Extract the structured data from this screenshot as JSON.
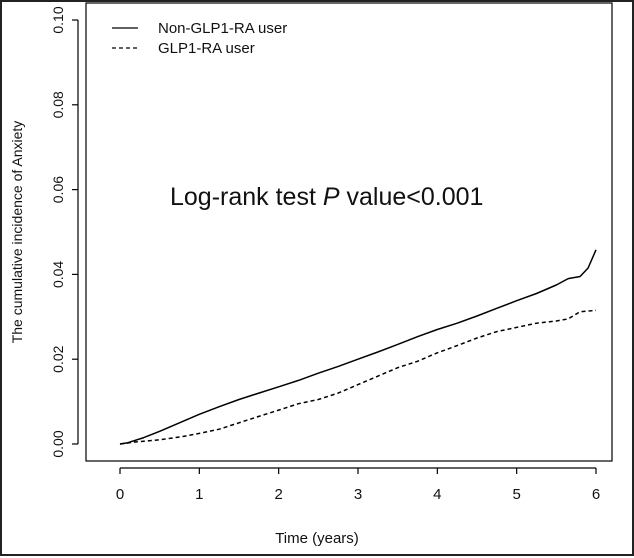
{
  "chart_data": {
    "type": "line",
    "title": "",
    "xlabel": "Time (years)",
    "ylabel": "The cumulative incidence of Anxiety",
    "xlim": [
      0,
      6
    ],
    "ylim": [
      0,
      0.1
    ],
    "x_ticks": [
      "0",
      "1",
      "2",
      "3",
      "4",
      "5",
      "6"
    ],
    "y_ticks": [
      "0.00",
      "0.02",
      "0.04",
      "0.06",
      "0.08",
      "0.10"
    ],
    "grid": false,
    "legend_position": "top-left",
    "annotation": {
      "prefix": "Log-rank test ",
      "italic": "P",
      "suffix": " value<0.001"
    },
    "series": [
      {
        "name": "Non-GLP1-RA user",
        "line_style": "solid",
        "color": "#000000",
        "x": [
          0,
          0.1,
          0.3,
          0.5,
          0.75,
          1.0,
          1.25,
          1.5,
          1.75,
          2.0,
          2.25,
          2.5,
          2.75,
          3.0,
          3.25,
          3.5,
          3.75,
          4.0,
          4.25,
          4.5,
          4.75,
          5.0,
          5.25,
          5.5,
          5.65,
          5.8,
          5.9,
          6.0
        ],
        "y": [
          0,
          0.0003,
          0.0015,
          0.003,
          0.005,
          0.007,
          0.0088,
          0.0105,
          0.012,
          0.0135,
          0.015,
          0.0167,
          0.0183,
          0.02,
          0.0217,
          0.0235,
          0.0253,
          0.027,
          0.0285,
          0.0302,
          0.032,
          0.0338,
          0.0355,
          0.0375,
          0.039,
          0.0395,
          0.0415,
          0.0458
        ]
      },
      {
        "name": "GLP1-RA user",
        "line_style": "dashed",
        "color": "#000000",
        "x": [
          0,
          0.2,
          0.5,
          0.8,
          1.0,
          1.25,
          1.5,
          1.75,
          2.0,
          2.25,
          2.5,
          2.75,
          3.0,
          3.25,
          3.5,
          3.75,
          4.0,
          4.25,
          4.5,
          4.75,
          5.0,
          5.25,
          5.5,
          5.65,
          5.8,
          6.0
        ],
        "y": [
          0,
          0.0005,
          0.001,
          0.0018,
          0.0025,
          0.0035,
          0.005,
          0.0065,
          0.008,
          0.0095,
          0.0105,
          0.012,
          0.014,
          0.016,
          0.018,
          0.0195,
          0.0215,
          0.0232,
          0.025,
          0.0265,
          0.0275,
          0.0285,
          0.029,
          0.0295,
          0.0312,
          0.0315
        ]
      }
    ]
  }
}
